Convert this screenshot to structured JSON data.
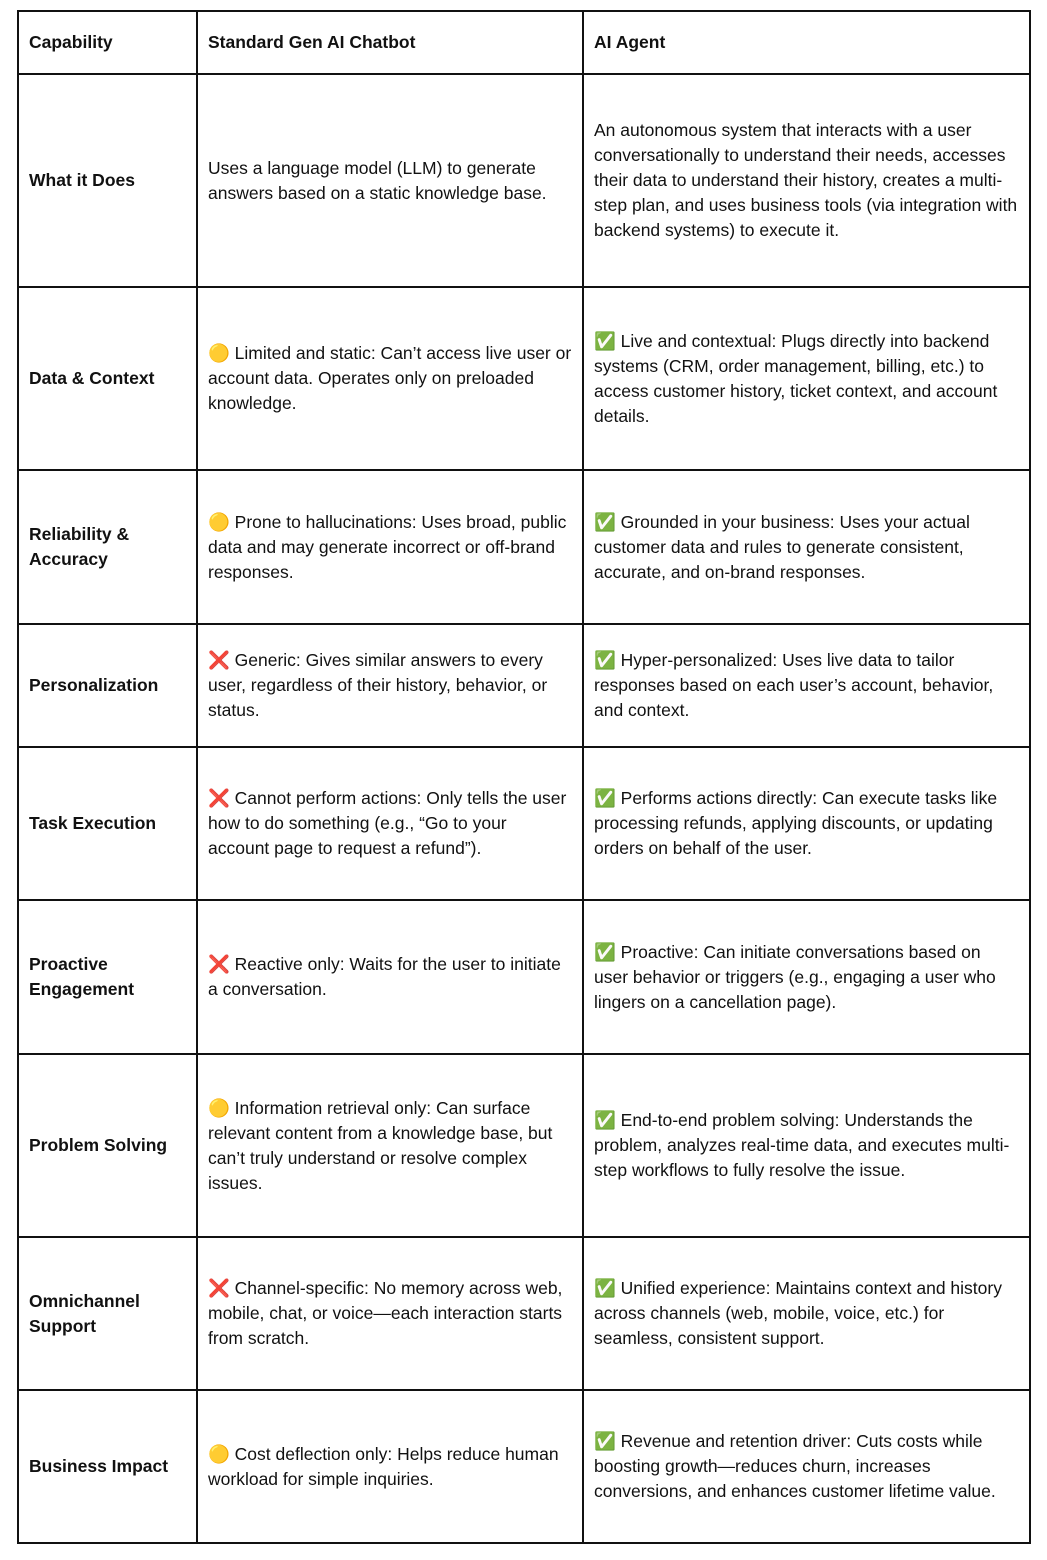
{
  "table": {
    "header": [
      "Capability",
      "Standard Gen AI Chatbot",
      "AI Agent"
    ],
    "rows": [
      [
        "What it Does",
        "Uses a language model (LLM) to generate answers based on a static knowledge base.",
        "An autonomous system that interacts with a user conversationally to understand their needs, accesses their data to understand their history, creates a multi-step plan, and uses business tools (via integration with backend systems) to execute it."
      ],
      [
        "Data & Context",
        "🟡 Limited and static: Can’t access live user or account data. Operates only on preloaded knowledge.",
        "✅ Live and contextual: Plugs directly into backend systems (CRM, order management, billing, etc.) to access customer history, ticket context, and account details."
      ],
      [
        "Reliability & Accuracy",
        "🟡 Prone to hallucinations: Uses broad, public data and may generate incorrect or off-brand responses.",
        "✅ Grounded in your business: Uses your actual customer data and rules to generate consistent, accurate, and on-brand responses."
      ],
      [
        "Personalization",
        "❌ Generic: Gives similar answers to every user, regardless of their history, behavior, or status.",
        "✅ Hyper-personalized: Uses live data to tailor responses based on each user’s account, behavior, and context."
      ],
      [
        "Task Execution",
        "❌ Cannot perform actions: Only tells the user how to do something (e.g., “Go to your account page to request a refund”).",
        "✅ Performs actions directly: Can execute tasks like processing refunds, applying discounts, or updating orders on behalf of the user."
      ],
      [
        "Proactive Engagement",
        "❌ Reactive only: Waits for the user to initiate a conversation.",
        "✅ Proactive: Can initiate conversations based on user behavior or triggers (e.g., engaging a user who lingers on a cancellation page)."
      ],
      [
        "Problem Solving",
        "🟡 Information retrieval only: Can surface relevant content from a knowledge base, but can’t truly understand or resolve complex issues.",
        "✅ End-to-end problem solving: Understands the problem, analyzes real-time data, and executes multi-step workflows to fully resolve the issue."
      ],
      [
        "Omnichannel Support",
        "❌ Channel-specific: No memory across web, mobile, chat, or voice—each interaction starts from scratch.",
        "✅ Unified experience: Maintains context and history across channels (web, mobile, voice, etc.) for seamless, consistent support."
      ],
      [
        "Business Impact",
        "🟡 Cost deflection only: Helps reduce human workload for simple inquiries.",
        "✅ Revenue and retention driver: Cuts costs while boosting growth—reduces churn, increases conversions, and enhances customer lifetime value."
      ]
    ]
  }
}
